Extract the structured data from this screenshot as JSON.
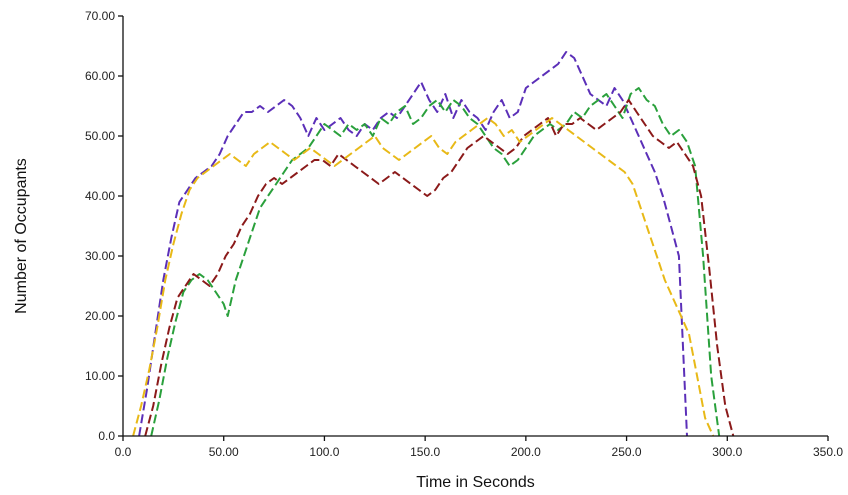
{
  "chart_data": {
    "type": "line",
    "title": "",
    "xlabel": "Time in Seconds",
    "ylabel": "Number of Occupants",
    "xlim": [
      0,
      350
    ],
    "ylim": [
      0,
      70
    ],
    "grid": false,
    "legend": "none",
    "x_ticks": [
      0,
      50,
      100,
      150,
      200,
      250,
      300,
      350
    ],
    "x_tick_labels": [
      "0.0",
      "50.00",
      "100.0",
      "150.0",
      "200.0",
      "250.0",
      "300.0",
      "350.0"
    ],
    "y_ticks": [
      0,
      10,
      20,
      30,
      40,
      50,
      60,
      70
    ],
    "y_tick_labels": [
      "0.0",
      "10.00",
      "20.00",
      "30.00",
      "40.00",
      "50.00",
      "60.00",
      "70.00"
    ],
    "series": [
      {
        "color": "#5b2fb8",
        "x": [
          8,
          12,
          16,
          20,
          24,
          28,
          32,
          36,
          40,
          44,
          48,
          52,
          56,
          60,
          64,
          68,
          72,
          76,
          80,
          84,
          88,
          92,
          96,
          100,
          104,
          108,
          112,
          116,
          120,
          124,
          128,
          132,
          136,
          140,
          144,
          148,
          152,
          156,
          160,
          164,
          168,
          172,
          176,
          180,
          184,
          188,
          192,
          196,
          200,
          204,
          208,
          212,
          216,
          220,
          224,
          228,
          232,
          236,
          240,
          244,
          248,
          252,
          256,
          260,
          264,
          268,
          272,
          276,
          280
        ],
        "y": [
          0,
          8,
          17,
          26,
          33,
          39,
          41,
          43,
          44,
          45,
          47,
          50,
          52,
          54,
          54,
          55,
          54,
          55,
          56,
          55,
          53,
          50,
          53,
          51,
          52,
          53,
          51,
          50,
          52,
          51,
          53,
          54,
          53,
          55,
          57,
          59,
          56,
          54,
          57,
          53,
          56,
          54,
          53,
          51,
          54,
          56,
          53,
          54,
          58,
          59,
          60,
          61,
          62,
          64,
          63,
          60,
          57,
          56,
          55,
          58,
          56,
          53,
          50,
          47,
          44,
          40,
          35,
          30,
          0
        ]
      },
      {
        "color": "#2aa03c",
        "x": [
          14,
          18,
          22,
          26,
          30,
          34,
          38,
          42,
          46,
          50,
          52,
          56,
          60,
          64,
          68,
          72,
          76,
          80,
          84,
          88,
          92,
          96,
          100,
          104,
          108,
          112,
          116,
          120,
          124,
          128,
          132,
          136,
          140,
          144,
          148,
          152,
          156,
          160,
          164,
          168,
          172,
          176,
          180,
          184,
          188,
          192,
          196,
          200,
          204,
          208,
          212,
          216,
          220,
          224,
          228,
          232,
          236,
          240,
          244,
          248,
          252,
          256,
          260,
          264,
          268,
          272,
          276,
          280,
          284,
          288,
          292,
          296
        ],
        "y": [
          0,
          6,
          13,
          19,
          24,
          26,
          27,
          26,
          24,
          22,
          20,
          26,
          30,
          34,
          38,
          40,
          42,
          44,
          46,
          47,
          48,
          50,
          52,
          51,
          50,
          52,
          51,
          52,
          50,
          53,
          52,
          54,
          55,
          52,
          53,
          55,
          56,
          54,
          56,
          55,
          53,
          52,
          50,
          48,
          47,
          45,
          46,
          48,
          50,
          51,
          52,
          51,
          52,
          54,
          53,
          55,
          56,
          57,
          55,
          53,
          57,
          58,
          56,
          55,
          52,
          50,
          51,
          49,
          45,
          30,
          10,
          0
        ]
      },
      {
        "color": "#8b1a1a",
        "x": [
          11,
          15,
          19,
          23,
          27,
          31,
          35,
          39,
          43,
          47,
          51,
          55,
          59,
          63,
          67,
          71,
          75,
          79,
          83,
          87,
          91,
          95,
          99,
          103,
          107,
          111,
          115,
          119,
          123,
          127,
          131,
          135,
          139,
          143,
          147,
          151,
          155,
          159,
          163,
          167,
          171,
          175,
          179,
          183,
          187,
          191,
          195,
          199,
          203,
          207,
          211,
          215,
          219,
          223,
          227,
          231,
          235,
          239,
          243,
          247,
          251,
          255,
          259,
          263,
          267,
          271,
          275,
          279,
          283,
          287,
          291,
          295,
          299,
          303
        ],
        "y": [
          0,
          5,
          12,
          18,
          23,
          25,
          27,
          26,
          25,
          27,
          30,
          32,
          35,
          37,
          40,
          42,
          43,
          42,
          43,
          44,
          45,
          46,
          46,
          45,
          47,
          46,
          45,
          44,
          43,
          42,
          43,
          44,
          43,
          42,
          41,
          40,
          41,
          43,
          44,
          46,
          48,
          49,
          50,
          49,
          48,
          47,
          48,
          50,
          51,
          52,
          53,
          50,
          52,
          52,
          53,
          52,
          51,
          52,
          53,
          54,
          56,
          54,
          52,
          50,
          49,
          48,
          49,
          47,
          45,
          40,
          28,
          15,
          5,
          0
        ]
      },
      {
        "color": "#e8b917",
        "x": [
          5,
          9,
          13,
          17,
          21,
          25,
          29,
          33,
          37,
          41,
          45,
          49,
          53,
          57,
          61,
          65,
          69,
          73,
          77,
          81,
          85,
          89,
          93,
          97,
          101,
          105,
          109,
          113,
          117,
          121,
          125,
          129,
          133,
          137,
          141,
          145,
          149,
          153,
          157,
          161,
          165,
          169,
          173,
          177,
          181,
          185,
          189,
          193,
          197,
          201,
          205,
          209,
          213,
          217,
          221,
          225,
          229,
          233,
          237,
          241,
          245,
          249,
          253,
          257,
          261,
          265,
          269,
          273,
          277,
          281,
          285,
          289,
          293
        ],
        "y": [
          0,
          5,
          11,
          18,
          26,
          32,
          37,
          41,
          43,
          44,
          45,
          46,
          47,
          46,
          45,
          47,
          48,
          49,
          48,
          47,
          46,
          47,
          48,
          47,
          46,
          45,
          46,
          47,
          48,
          49,
          50,
          48,
          47,
          46,
          47,
          48,
          49,
          50,
          48,
          47,
          49,
          50,
          51,
          52,
          53,
          52,
          50,
          51,
          49,
          50,
          51,
          52,
          53,
          52,
          51,
          50,
          49,
          48,
          47,
          46,
          45,
          44,
          42,
          38,
          34,
          30,
          26,
          23,
          20,
          17,
          10,
          3,
          0
        ]
      }
    ]
  }
}
